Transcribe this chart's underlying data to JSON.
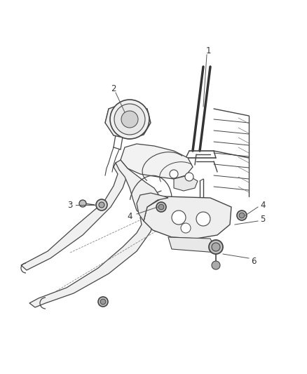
{
  "background_color": "#ffffff",
  "figure_width": 4.38,
  "figure_height": 5.33,
  "dpi": 100,
  "lc": "#444444",
  "lw": 0.8,
  "font_size": 8.5,
  "text_color": "#333333"
}
